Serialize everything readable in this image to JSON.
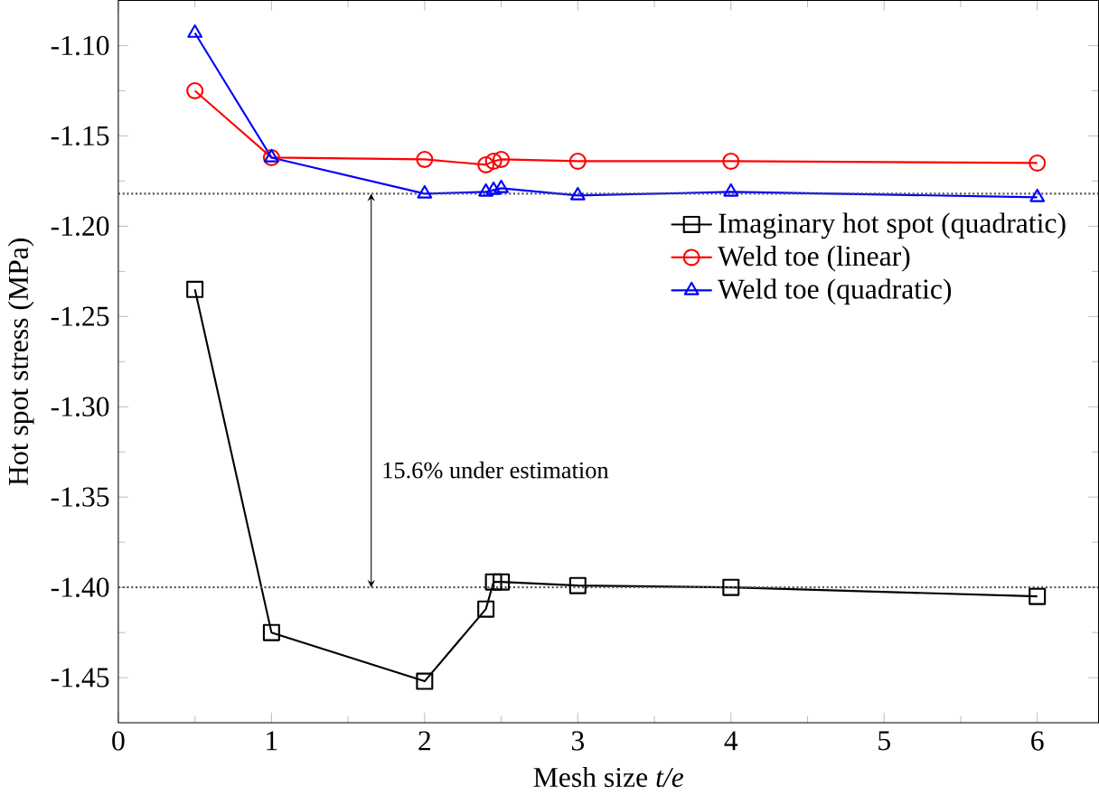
{
  "chart_data": {
    "type": "line",
    "xlabel": "Mesh size *t/e*",
    "ylabel": "Hot spot stress (MPa)",
    "xlim": [
      0,
      6.4
    ],
    "xticks": [
      0,
      1,
      2,
      3,
      4,
      5,
      6
    ],
    "ylim": [
      -1.475,
      -1.075
    ],
    "yticks": [
      {
        "value": -1.45,
        "label": "-1.45"
      },
      {
        "value": -1.4,
        "label": "-1.40"
      },
      {
        "value": -1.35,
        "label": "-1.35"
      },
      {
        "value": -1.3,
        "label": "-1.30"
      },
      {
        "value": -1.25,
        "label": "-1.25"
      },
      {
        "value": -1.2,
        "label": "-1.20"
      },
      {
        "value": -1.15,
        "label": "-1.15"
      },
      {
        "value": -1.1,
        "label": "-1.10"
      }
    ],
    "x": [
      0.5,
      1,
      2,
      2.4,
      2.45,
      2.5,
      3,
      4,
      6
    ],
    "series": [
      {
        "name": "Imaginary hot spot (quadratic)",
        "color": "#000000",
        "marker": "square",
        "values": [
          -1.235,
          -1.425,
          -1.452,
          -1.412,
          -1.397,
          -1.397,
          -1.399,
          -1.4,
          -1.405
        ]
      },
      {
        "name": "Weld toe (linear)",
        "color": "#ff0000",
        "marker": "circle",
        "values": [
          -1.125,
          -1.162,
          -1.163,
          -1.166,
          -1.164,
          -1.163,
          -1.164,
          -1.164,
          -1.165
        ]
      },
      {
        "name": "Weld toe (quadratic)",
        "color": "#0000ff",
        "marker": "triangle",
        "values": [
          -1.093,
          -1.162,
          -1.182,
          -1.181,
          -1.18,
          -1.179,
          -1.183,
          -1.181,
          -1.184
        ]
      }
    ],
    "ref_lines": [
      {
        "axis": "y",
        "value": -1.182,
        "color": "#555555",
        "line_style": "dotted"
      },
      {
        "axis": "y",
        "value": -1.4,
        "color": "#555555",
        "line_style": "dotted"
      }
    ],
    "annotations": [
      "15.6% under estimation"
    ],
    "legend": "right",
    "grid": false
  }
}
